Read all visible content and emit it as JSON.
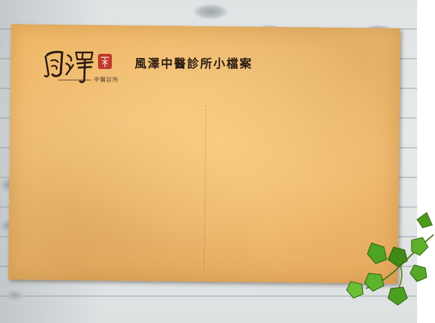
{
  "logo": {
    "subtitle": "中醫診所"
  },
  "header": {
    "title": "風澤中醫診所小檔案"
  }
}
